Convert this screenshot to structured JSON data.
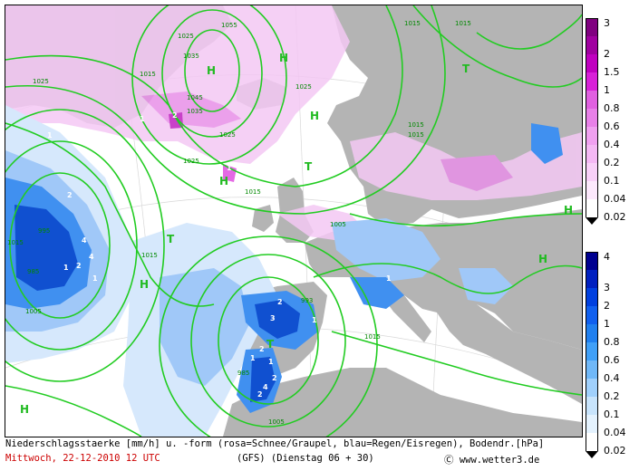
{
  "caption": {
    "line1": "Niederschlagsstaerke [mm/h] u. -form (rosa=Schnee/Graupel, blau=Regen/Eisregen), Bodendr.[hPa]",
    "date": "Mittwoch, 22-12-2010  12 UTC",
    "model": "(GFS)  (Dienstag 06 + 30)",
    "copyright": "Ⓒ www.wetter3.de"
  },
  "legend_snow": {
    "labels": [
      "3",
      "2",
      "1.5",
      "1",
      "0.8",
      "0.6",
      "0.4",
      "0.2",
      "0.1",
      "0.04",
      "0.02"
    ],
    "colors": [
      "#800080",
      "#a000a0",
      "#c000c0",
      "#d820d8",
      "#e060e0",
      "#e880e8",
      "#f0a0f0",
      "#f4b8f4",
      "#f8d0f8",
      "#fce8fc",
      "#ffffff"
    ]
  },
  "legend_rain": {
    "labels": [
      "4",
      "3",
      "2",
      "1",
      "0.8",
      "0.6",
      "0.4",
      "0.2",
      "0.1",
      "0.04",
      "0.02"
    ],
    "colors": [
      "#000090",
      "#0020c0",
      "#0040e0",
      "#1060f0",
      "#2080f0",
      "#40a0f8",
      "#70b8f8",
      "#a0d0fc",
      "#c8e4fc",
      "#e4f2fe",
      "#ffffff"
    ]
  },
  "isobar_labels": [
    "1025",
    "1035",
    "1055",
    "1045",
    "1035",
    "1015",
    "1025",
    "1015",
    "1025",
    "1025",
    "1015",
    "1005",
    "1015",
    "1015",
    "1015",
    "1025",
    "1015",
    "995",
    "985",
    "1005",
    "993",
    "985",
    "1005",
    "1015",
    "1015"
  ],
  "pressure_centers": [
    "H",
    "H",
    "T",
    "T",
    "H",
    "H",
    "T",
    "T",
    "H",
    "H",
    "H",
    "H"
  ],
  "precip_values": [
    "1",
    "2",
    "1",
    "1",
    "2",
    "4",
    "4",
    "2",
    "1",
    "1",
    "2",
    "1",
    "3",
    "2",
    "1",
    "1",
    "2",
    "4",
    "2",
    "1"
  ],
  "colors": {
    "land": "#b4b4b4",
    "sea": "#ffffff",
    "isobar": "#22cc22",
    "snow_light": "#f4c8f4",
    "rain_dark": "#1050d0"
  }
}
